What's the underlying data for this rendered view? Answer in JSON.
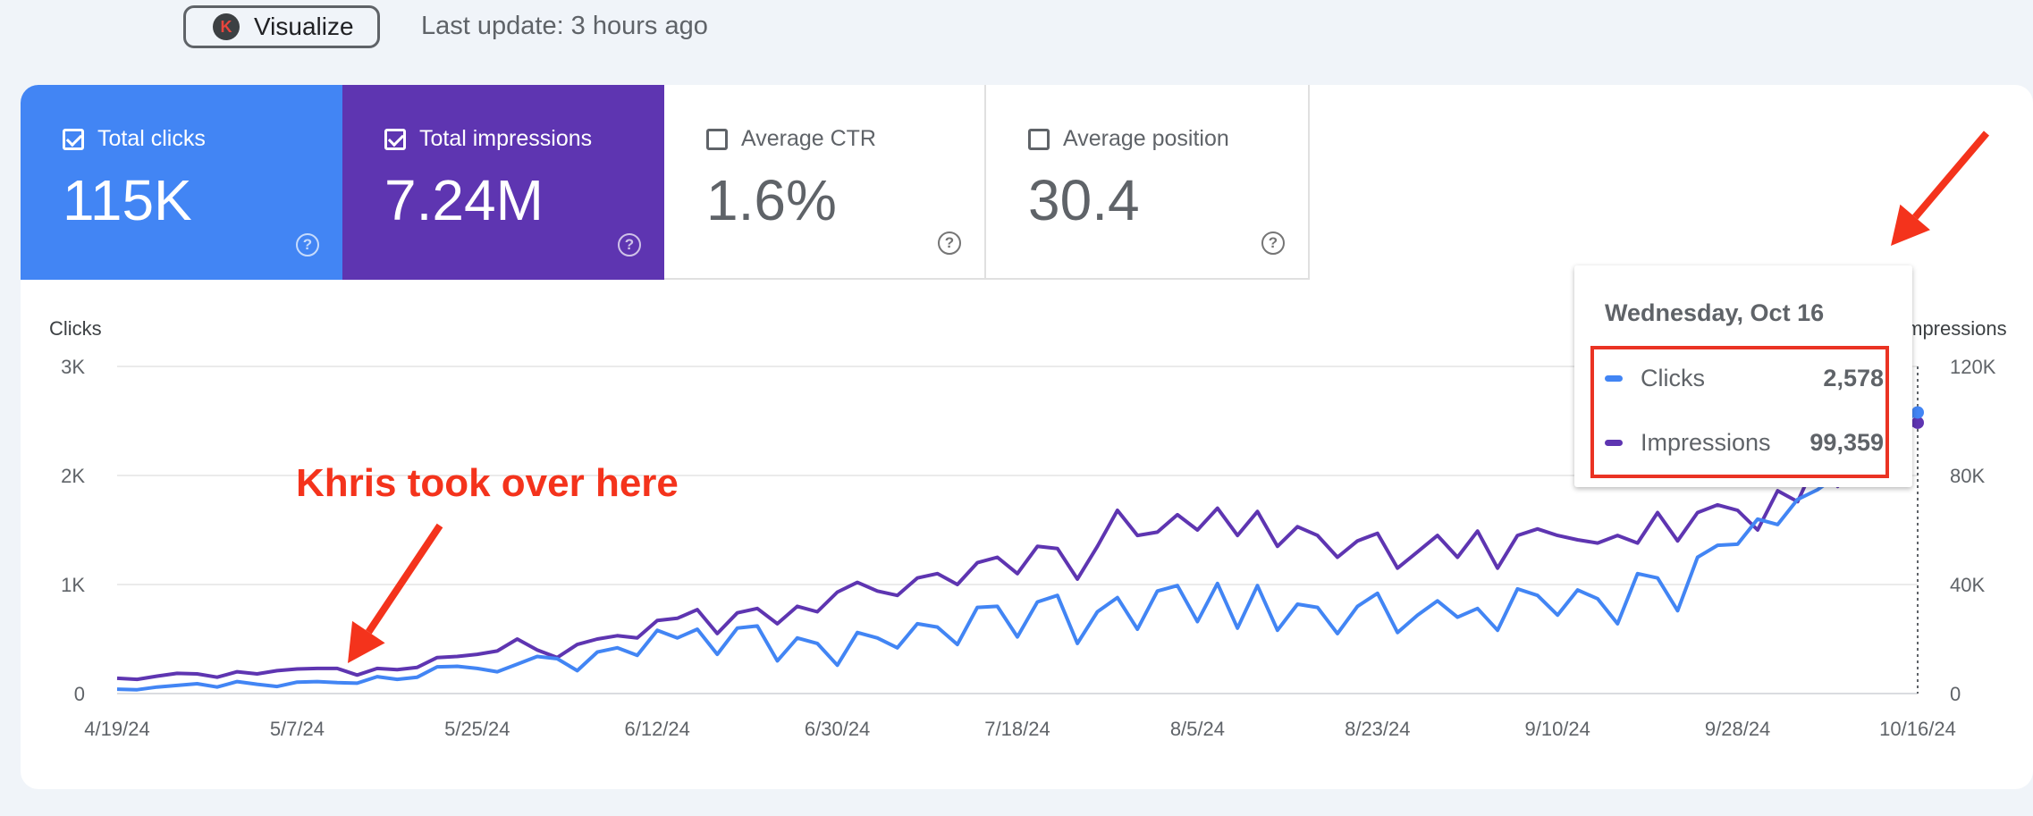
{
  "toolbar": {
    "visualize_label": "Visualize",
    "visualize_logo_letter": "K",
    "last_update": "Last update: 3 hours ago"
  },
  "metrics": [
    {
      "label": "Total clicks",
      "value": "115K",
      "checked": true
    },
    {
      "label": "Total impressions",
      "value": "7.24M",
      "checked": true
    },
    {
      "label": "Average CTR",
      "value": "1.6%",
      "checked": false
    },
    {
      "label": "Average position",
      "value": "30.4",
      "checked": false
    }
  ],
  "tooltip": {
    "date": "Wednesday, Oct 16",
    "rows": [
      {
        "name": "Clicks",
        "value": "2,578"
      },
      {
        "name": "Impressions",
        "value": "99,359"
      }
    ]
  },
  "annotation": "Khris took over here",
  "colors": {
    "clicks": "#4285f4",
    "impressions": "#5e35b1",
    "annotation": "#f4331c"
  },
  "chart_data": {
    "type": "line",
    "y_left_label": "Clicks",
    "y_right_label": "Impressions",
    "y_left_ticks": [
      "0",
      "1K",
      "2K",
      "3K"
    ],
    "y_right_ticks": [
      "0",
      "40K",
      "80K",
      "120K"
    ],
    "y_left_range": [
      0,
      3000
    ],
    "y_right_range": [
      0,
      120000
    ],
    "x_ticks": [
      "4/19/24",
      "5/7/24",
      "5/25/24",
      "6/12/24",
      "6/30/24",
      "7/18/24",
      "8/5/24",
      "8/23/24",
      "9/10/24",
      "9/28/24",
      "10/16/24"
    ],
    "x_range": [
      "2024-04-19",
      "2024-10-16"
    ],
    "grid": true,
    "series": [
      {
        "name": "Clicks",
        "axis": "left",
        "points": [
          [
            "2024-04-19",
            40
          ],
          [
            "2024-04-21",
            35
          ],
          [
            "2024-04-23",
            60
          ],
          [
            "2024-04-25",
            75
          ],
          [
            "2024-04-27",
            90
          ],
          [
            "2024-04-29",
            60
          ],
          [
            "2024-05-01",
            110
          ],
          [
            "2024-05-03",
            85
          ],
          [
            "2024-05-05",
            65
          ],
          [
            "2024-05-07",
            105
          ],
          [
            "2024-05-09",
            110
          ],
          [
            "2024-05-11",
            100
          ],
          [
            "2024-05-13",
            95
          ],
          [
            "2024-05-15",
            155
          ],
          [
            "2024-05-17",
            130
          ],
          [
            "2024-05-19",
            150
          ],
          [
            "2024-05-21",
            245
          ],
          [
            "2024-05-23",
            250
          ],
          [
            "2024-05-25",
            230
          ],
          [
            "2024-05-27",
            200
          ],
          [
            "2024-05-29",
            270
          ],
          [
            "2024-05-31",
            340
          ],
          [
            "2024-06-02",
            320
          ],
          [
            "2024-06-04",
            210
          ],
          [
            "2024-06-06",
            380
          ],
          [
            "2024-06-08",
            420
          ],
          [
            "2024-06-10",
            350
          ],
          [
            "2024-06-12",
            580
          ],
          [
            "2024-06-14",
            510
          ],
          [
            "2024-06-16",
            590
          ],
          [
            "2024-06-18",
            360
          ],
          [
            "2024-06-20",
            600
          ],
          [
            "2024-06-22",
            620
          ],
          [
            "2024-06-24",
            300
          ],
          [
            "2024-06-26",
            510
          ],
          [
            "2024-06-28",
            460
          ],
          [
            "2024-06-30",
            260
          ],
          [
            "2024-07-02",
            560
          ],
          [
            "2024-07-04",
            510
          ],
          [
            "2024-07-06",
            420
          ],
          [
            "2024-07-08",
            640
          ],
          [
            "2024-07-10",
            610
          ],
          [
            "2024-07-12",
            450
          ],
          [
            "2024-07-14",
            790
          ],
          [
            "2024-07-16",
            800
          ],
          [
            "2024-07-18",
            520
          ],
          [
            "2024-07-20",
            840
          ],
          [
            "2024-07-22",
            900
          ],
          [
            "2024-07-24",
            460
          ],
          [
            "2024-07-26",
            750
          ],
          [
            "2024-07-28",
            880
          ],
          [
            "2024-07-30",
            590
          ],
          [
            "2024-08-01",
            940
          ],
          [
            "2024-08-03",
            990
          ],
          [
            "2024-08-05",
            660
          ],
          [
            "2024-08-07",
            1010
          ],
          [
            "2024-08-09",
            600
          ],
          [
            "2024-08-11",
            990
          ],
          [
            "2024-08-13",
            580
          ],
          [
            "2024-08-15",
            820
          ],
          [
            "2024-08-17",
            790
          ],
          [
            "2024-08-19",
            550
          ],
          [
            "2024-08-21",
            800
          ],
          [
            "2024-08-23",
            920
          ],
          [
            "2024-08-25",
            560
          ],
          [
            "2024-08-27",
            720
          ],
          [
            "2024-08-29",
            850
          ],
          [
            "2024-08-31",
            700
          ],
          [
            "2024-09-02",
            780
          ],
          [
            "2024-09-04",
            580
          ],
          [
            "2024-09-06",
            960
          ],
          [
            "2024-09-08",
            900
          ],
          [
            "2024-09-10",
            720
          ],
          [
            "2024-09-12",
            950
          ],
          [
            "2024-09-14",
            870
          ],
          [
            "2024-09-16",
            640
          ],
          [
            "2024-09-18",
            1100
          ],
          [
            "2024-09-20",
            1060
          ],
          [
            "2024-09-22",
            760
          ],
          [
            "2024-09-24",
            1250
          ],
          [
            "2024-09-26",
            1360
          ],
          [
            "2024-09-28",
            1370
          ],
          [
            "2024-09-30",
            1600
          ],
          [
            "2024-10-02",
            1550
          ],
          [
            "2024-10-04",
            1780
          ],
          [
            "2024-10-06",
            1870
          ],
          [
            "2024-10-08",
            2000
          ],
          [
            "2024-10-10",
            2200
          ],
          [
            "2024-10-12",
            2300
          ],
          [
            "2024-10-14",
            2450
          ],
          [
            "2024-10-16",
            2578
          ]
        ]
      },
      {
        "name": "Impressions",
        "axis": "right",
        "points": [
          [
            "2024-04-19",
            5600
          ],
          [
            "2024-04-21",
            5200
          ],
          [
            "2024-04-23",
            6400
          ],
          [
            "2024-04-25",
            7400
          ],
          [
            "2024-04-27",
            7200
          ],
          [
            "2024-04-29",
            6000
          ],
          [
            "2024-05-01",
            8000
          ],
          [
            "2024-05-03",
            7200
          ],
          [
            "2024-05-05",
            8400
          ],
          [
            "2024-05-07",
            9000
          ],
          [
            "2024-05-09",
            9200
          ],
          [
            "2024-05-11",
            9200
          ],
          [
            "2024-05-13",
            6800
          ],
          [
            "2024-05-15",
            9200
          ],
          [
            "2024-05-17",
            8800
          ],
          [
            "2024-05-19",
            9600
          ],
          [
            "2024-05-21",
            13200
          ],
          [
            "2024-05-23",
            13600
          ],
          [
            "2024-05-25",
            14400
          ],
          [
            "2024-05-27",
            15600
          ],
          [
            "2024-05-29",
            20000
          ],
          [
            "2024-05-31",
            16000
          ],
          [
            "2024-06-02",
            13200
          ],
          [
            "2024-06-04",
            18000
          ],
          [
            "2024-06-06",
            20000
          ],
          [
            "2024-06-08",
            21200
          ],
          [
            "2024-06-10",
            20400
          ],
          [
            "2024-06-12",
            26800
          ],
          [
            "2024-06-14",
            27600
          ],
          [
            "2024-06-16",
            30800
          ],
          [
            "2024-06-18",
            22000
          ],
          [
            "2024-06-20",
            29600
          ],
          [
            "2024-06-22",
            31200
          ],
          [
            "2024-06-24",
            25600
          ],
          [
            "2024-06-26",
            32000
          ],
          [
            "2024-06-28",
            30000
          ],
          [
            "2024-06-30",
            37200
          ],
          [
            "2024-07-02",
            40800
          ],
          [
            "2024-07-04",
            37600
          ],
          [
            "2024-07-06",
            36000
          ],
          [
            "2024-07-08",
            42400
          ],
          [
            "2024-07-10",
            44000
          ],
          [
            "2024-07-12",
            40000
          ],
          [
            "2024-07-14",
            48000
          ],
          [
            "2024-07-16",
            50000
          ],
          [
            "2024-07-18",
            44000
          ],
          [
            "2024-07-20",
            54000
          ],
          [
            "2024-07-22",
            53200
          ],
          [
            "2024-07-24",
            42000
          ],
          [
            "2024-07-26",
            54000
          ],
          [
            "2024-07-28",
            67200
          ],
          [
            "2024-07-30",
            58000
          ],
          [
            "2024-08-01",
            59200
          ],
          [
            "2024-08-03",
            65600
          ],
          [
            "2024-08-05",
            60000
          ],
          [
            "2024-08-07",
            68000
          ],
          [
            "2024-08-09",
            58000
          ],
          [
            "2024-08-11",
            66800
          ],
          [
            "2024-08-13",
            54000
          ],
          [
            "2024-08-15",
            61200
          ],
          [
            "2024-08-17",
            58000
          ],
          [
            "2024-08-19",
            50000
          ],
          [
            "2024-08-21",
            56000
          ],
          [
            "2024-08-23",
            58800
          ],
          [
            "2024-08-25",
            46000
          ],
          [
            "2024-08-27",
            52000
          ],
          [
            "2024-08-29",
            58000
          ],
          [
            "2024-08-31",
            50000
          ],
          [
            "2024-09-02",
            59600
          ],
          [
            "2024-09-04",
            46000
          ],
          [
            "2024-09-06",
            58000
          ],
          [
            "2024-09-08",
            60400
          ],
          [
            "2024-09-10",
            58000
          ],
          [
            "2024-09-12",
            56400
          ],
          [
            "2024-09-14",
            55200
          ],
          [
            "2024-09-16",
            58000
          ],
          [
            "2024-09-18",
            55200
          ],
          [
            "2024-09-20",
            66400
          ],
          [
            "2024-09-22",
            56000
          ],
          [
            "2024-09-24",
            66400
          ],
          [
            "2024-09-26",
            69200
          ],
          [
            "2024-09-28",
            67200
          ],
          [
            "2024-09-30",
            60000
          ],
          [
            "2024-10-02",
            74400
          ],
          [
            "2024-10-04",
            70400
          ],
          [
            "2024-10-06",
            86400
          ],
          [
            "2024-10-08",
            76000
          ],
          [
            "2024-10-10",
            88800
          ],
          [
            "2024-10-12",
            90800
          ],
          [
            "2024-10-14",
            96000
          ],
          [
            "2024-10-16",
            99359
          ]
        ]
      }
    ]
  }
}
